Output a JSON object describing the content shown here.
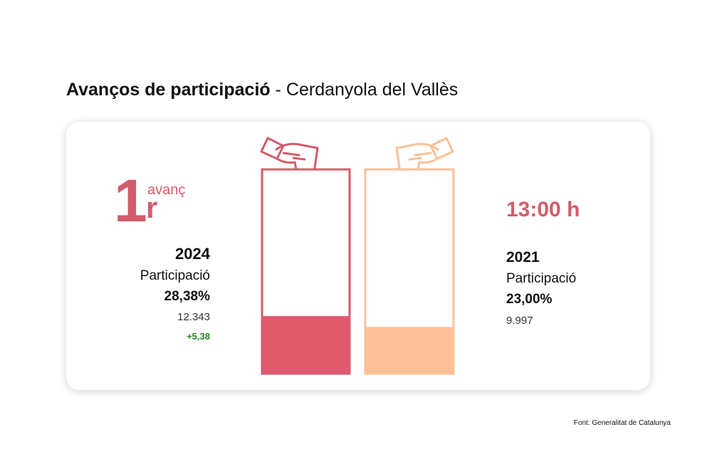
{
  "title": {
    "main": "Avanços de participació",
    "separator": "-",
    "place": "Cerdanyola del Vallès"
  },
  "round": {
    "number": "1",
    "suffix": "r",
    "word": "avanç"
  },
  "time": "13:00 h",
  "current": {
    "year": "2024",
    "label": "Participació",
    "percent_text": "28,38%",
    "votes": "12.343",
    "difference": "+5,38"
  },
  "previous": {
    "year": "2021",
    "label": "Participació",
    "percent_text": "23,00%",
    "votes": "9.997"
  },
  "source": "Font: Generalitat de Catalunya",
  "chart_data": {
    "type": "bar",
    "categories": [
      "2024",
      "2021"
    ],
    "values": [
      28.38,
      23.0
    ],
    "ylim": [
      0,
      100
    ],
    "grid": false,
    "colors": [
      "#e05a6e",
      "#fdbf98"
    ],
    "outline_colors": [
      "#d35c6b",
      "#fdbf98"
    ]
  },
  "colors": {
    "accent": "#d35c6b",
    "positive": "#1f8a24"
  },
  "icons": [
    "ballot-hand-icon"
  ]
}
